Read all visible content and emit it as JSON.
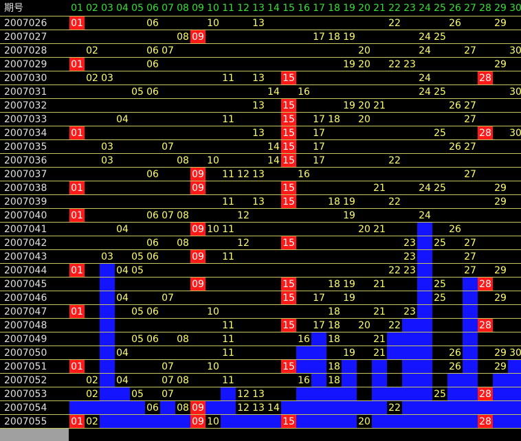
{
  "header": {
    "period_label": "期号",
    "columns": [
      "01",
      "02",
      "03",
      "04",
      "05",
      "06",
      "07",
      "08",
      "09",
      "10",
      "11",
      "12",
      "13",
      "14",
      "15",
      "16",
      "17",
      "18",
      "19",
      "20",
      "21",
      "22",
      "23",
      "24",
      "25",
      "26",
      "27",
      "28",
      "29",
      "30"
    ]
  },
  "highlight_columns": [
    "01",
    "09",
    "15",
    "28"
  ],
  "rows": [
    {
      "period": "2007026",
      "numbers": [
        "01",
        "06",
        "10",
        "13",
        "22",
        "26",
        "29"
      ],
      "blue": []
    },
    {
      "period": "2007027",
      "numbers": [
        "08",
        "09",
        "17",
        "18",
        "19",
        "24",
        "25"
      ],
      "blue": []
    },
    {
      "period": "2007028",
      "numbers": [
        "02",
        "06",
        "07",
        "20",
        "24",
        "27",
        "30"
      ],
      "blue": []
    },
    {
      "period": "2007029",
      "numbers": [
        "01",
        "06",
        "19",
        "20",
        "22",
        "23",
        "29"
      ],
      "blue": []
    },
    {
      "period": "2007030",
      "numbers": [
        "02",
        "03",
        "11",
        "13",
        "15",
        "24",
        "28"
      ],
      "blue": []
    },
    {
      "period": "2007031",
      "numbers": [
        "05",
        "06",
        "14",
        "16",
        "24",
        "25",
        "30"
      ],
      "blue": []
    },
    {
      "period": "2007032",
      "numbers": [
        "13",
        "15",
        "19",
        "20",
        "21",
        "26",
        "27"
      ],
      "blue": []
    },
    {
      "period": "2007033",
      "numbers": [
        "04",
        "11",
        "15",
        "17",
        "18",
        "20",
        "27"
      ],
      "blue": []
    },
    {
      "period": "2007034",
      "numbers": [
        "01",
        "13",
        "15",
        "17",
        "25",
        "28",
        "30"
      ],
      "blue": []
    },
    {
      "period": "2007035",
      "numbers": [
        "03",
        "07",
        "14",
        "15",
        "17",
        "26",
        "27"
      ],
      "blue": []
    },
    {
      "period": "2007036",
      "numbers": [
        "03",
        "08",
        "10",
        "14",
        "15",
        "17",
        "22"
      ],
      "blue": []
    },
    {
      "period": "2007037",
      "numbers": [
        "06",
        "09",
        "11",
        "12",
        "13",
        "16",
        "27"
      ],
      "blue": []
    },
    {
      "period": "2007038",
      "numbers": [
        "01",
        "09",
        "15",
        "21",
        "24",
        "25",
        "29"
      ],
      "blue": []
    },
    {
      "period": "2007039",
      "numbers": [
        "11",
        "13",
        "15",
        "18",
        "19",
        "22",
        "29"
      ],
      "blue": []
    },
    {
      "period": "2007040",
      "numbers": [
        "01",
        "06",
        "07",
        "08",
        "12",
        "19",
        "24"
      ],
      "blue": []
    },
    {
      "period": "2007041",
      "numbers": [
        "04",
        "09",
        "10",
        "11",
        "20",
        "21",
        "26"
      ],
      "blue": [
        24
      ]
    },
    {
      "period": "2007042",
      "numbers": [
        "06",
        "08",
        "12",
        "15",
        "23",
        "25",
        "27"
      ],
      "blue": [
        24
      ]
    },
    {
      "period": "2007043",
      "numbers": [
        "03",
        "05",
        "06",
        "09",
        "11",
        "23",
        "27"
      ],
      "blue": [
        24
      ]
    },
    {
      "period": "2007044",
      "numbers": [
        "01",
        "04",
        "05",
        "22",
        "23",
        "27",
        "29"
      ],
      "blue": [
        3,
        24
      ]
    },
    {
      "period": "2007045",
      "numbers": [
        "09",
        "15",
        "18",
        "19",
        "21",
        "25",
        "28"
      ],
      "blue": [
        3,
        24,
        27
      ]
    },
    {
      "period": "2007046",
      "numbers": [
        "04",
        "07",
        "15",
        "17",
        "19",
        "25",
        "29"
      ],
      "blue": [
        3,
        24,
        27
      ]
    },
    {
      "period": "2007047",
      "numbers": [
        "01",
        "05",
        "06",
        "10",
        "18",
        "21",
        "23"
      ],
      "blue": [
        3,
        24,
        27
      ]
    },
    {
      "period": "2007048",
      "numbers": [
        "11",
        "15",
        "17",
        "18",
        "20",
        "22",
        "28"
      ],
      "blue": [
        3,
        23,
        24,
        27
      ]
    },
    {
      "period": "2007049",
      "numbers": [
        "05",
        "06",
        "08",
        "11",
        "16",
        "18",
        "21"
      ],
      "blue": [
        3,
        17,
        22,
        23,
        24,
        27
      ]
    },
    {
      "period": "2007050",
      "numbers": [
        "04",
        "11",
        "19",
        "21",
        "26",
        "29",
        "30"
      ],
      "blue": [
        3,
        16,
        17,
        22,
        23,
        24,
        27
      ]
    },
    {
      "period": "2007051",
      "numbers": [
        "01",
        "07",
        "10",
        "15",
        "18",
        "26",
        "29"
      ],
      "blue": [
        3,
        16,
        17,
        19,
        21,
        23,
        24,
        27,
        30
      ]
    },
    {
      "period": "2007052",
      "numbers": [
        "02",
        "04",
        "07",
        "08",
        "11",
        "16",
        "18"
      ],
      "blue": [
        3,
        17,
        19,
        21,
        23,
        24,
        26,
        27,
        29,
        30
      ]
    },
    {
      "period": "2007053",
      "numbers": [
        "02",
        "05",
        "07",
        "12",
        "13",
        "25",
        "28"
      ],
      "blue": [
        3,
        4,
        11,
        16,
        17,
        18,
        19,
        21,
        22,
        23,
        24,
        26,
        27,
        29,
        30
      ]
    },
    {
      "period": "2007054",
      "numbers": [
        "06",
        "08",
        "09",
        "12",
        "13",
        "14",
        "22"
      ],
      "blue": [
        1,
        2,
        3,
        4,
        5,
        7,
        10,
        11,
        15,
        16,
        17,
        18,
        19,
        20,
        21,
        23,
        24,
        25,
        26,
        27,
        28,
        29,
        30
      ]
    },
    {
      "period": "2007055",
      "numbers": [
        "01",
        "02",
        "09",
        "10",
        "15",
        "20",
        "28"
      ],
      "blue": [
        3,
        4,
        5,
        6,
        7,
        8,
        11,
        12,
        13,
        14,
        16,
        17,
        18,
        19,
        21,
        22,
        23,
        24,
        25,
        26,
        27,
        29,
        30
      ]
    }
  ]
}
